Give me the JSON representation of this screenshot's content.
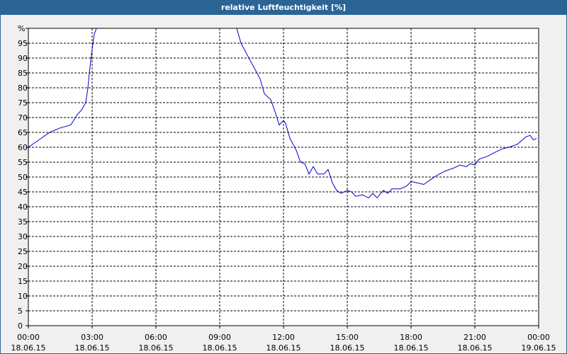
{
  "chart_data": {
    "type": "line",
    "title": "relative Luftfeuchtigkeit [%]",
    "color": "#0000cc",
    "grid": true,
    "xlim": [
      0,
      24
    ],
    "ylim": [
      0,
      100
    ],
    "xticks": [
      {
        "value": 0,
        "label": "00:00\n18.06.15"
      },
      {
        "value": 3,
        "label": "03:00\n18.06.15"
      },
      {
        "value": 6,
        "label": "06:00\n18.06.15"
      },
      {
        "value": 9,
        "label": "09:00\n18.06.15"
      },
      {
        "value": 12,
        "label": "12:00\n18.06.15"
      },
      {
        "value": 15,
        "label": "15:00\n18.06.15"
      },
      {
        "value": 18,
        "label": "18:00\n18.06.15"
      },
      {
        "value": 21,
        "label": "21:00\n18.06.15"
      },
      {
        "value": 24,
        "label": "00:00\n19.06.15"
      }
    ],
    "yticks": [
      0,
      5,
      10,
      15,
      20,
      25,
      30,
      35,
      40,
      45,
      50,
      55,
      60,
      65,
      70,
      75,
      80,
      85,
      90,
      95,
      {
        "value": 100,
        "label": "%"
      }
    ],
    "x": [
      0,
      0.5,
      1,
      1.5,
      2,
      2.3,
      2.5,
      2.7,
      2.8,
      2.9,
      3.0,
      3.1,
      3.2,
      6.5,
      9.8,
      10.0,
      10.3,
      10.6,
      10.9,
      11.1,
      11.4,
      11.6,
      11.8,
      12.0,
      12.1,
      12.3,
      12.6,
      12.8,
      13.0,
      13.2,
      13.4,
      13.6,
      13.9,
      14.1,
      14.3,
      14.5,
      14.7,
      15.0,
      15.2,
      15.4,
      15.7,
      16.0,
      16.2,
      16.4,
      16.7,
      16.9,
      17.1,
      17.5,
      17.8,
      18.0,
      18.3,
      18.6,
      18.9,
      19.2,
      19.6,
      20.0,
      20.3,
      20.6,
      20.8,
      21.0,
      21.2,
      21.6,
      22.0,
      22.3,
      22.6,
      23.0,
      23.4,
      23.6,
      23.75,
      23.9
    ],
    "values": [
      60,
      62.5,
      65,
      66.5,
      67.5,
      71,
      72.5,
      75,
      80,
      87,
      93,
      98,
      100,
      null,
      100,
      95,
      91,
      87,
      83,
      78,
      76,
      72,
      67.5,
      69,
      68,
      63,
      59,
      55,
      54.5,
      51,
      53.5,
      51,
      51,
      52.5,
      48,
      45.5,
      44.5,
      45.5,
      45,
      43.5,
      44,
      43,
      44.5,
      43,
      45.5,
      44.5,
      46,
      46,
      47,
      48.5,
      48,
      47.5,
      49,
      50.5,
      52,
      53,
      54,
      53.5,
      54.5,
      54,
      56,
      57,
      58.5,
      59.5,
      60,
      61,
      63.5,
      64,
      62.5,
      63
    ]
  }
}
